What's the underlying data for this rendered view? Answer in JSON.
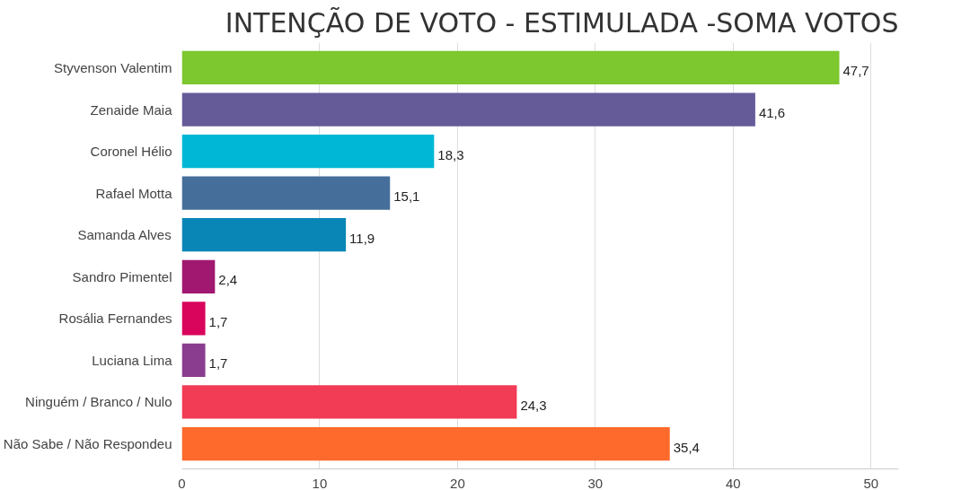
{
  "chart_data": {
    "type": "bar",
    "orientation": "horizontal",
    "title": "INTENÇÃO DE VOTO - ESTIMULADA -SOMA VOTOS",
    "categories": [
      "Styvenson Valentim",
      "Zenaide Maia",
      "Coronel Hélio",
      "Rafael Motta",
      "Samanda Alves",
      "Sandro Pimentel",
      "Rosália Fernandes",
      "Luciana Lima",
      "Ninguém / Branco / Nulo",
      "Não Sabe / Não Respondeu"
    ],
    "values": [
      47.7,
      41.6,
      18.3,
      15.1,
      11.9,
      2.4,
      1.7,
      1.7,
      24.3,
      35.4
    ],
    "colors": [
      "#7dc72f",
      "#665b99",
      "#00b8d6",
      "#466e9a",
      "#0a86b6",
      "#a0186f",
      "#d9045b",
      "#8a3d8e",
      "#f23b54",
      "#fe6a2c"
    ],
    "value_labels": [
      "47,7",
      "41,6",
      "18,3",
      "15,1",
      "11,9",
      "2,4",
      "1,7",
      "1,7",
      "24,3",
      "35,4"
    ],
    "xlim": [
      0,
      52
    ],
    "xticks": [
      0,
      10,
      20,
      30,
      40,
      50
    ],
    "grid": "x"
  }
}
